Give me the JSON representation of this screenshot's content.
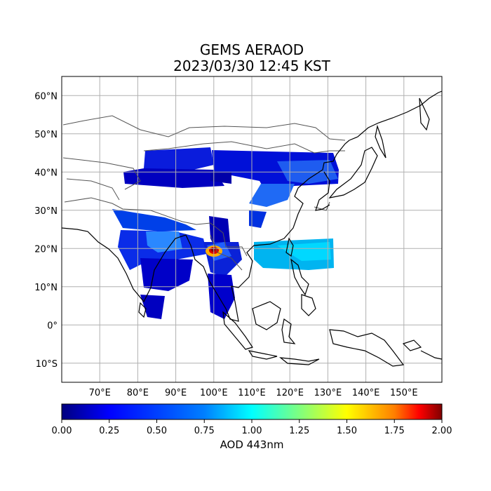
{
  "title": "GEMS AERAOD",
  "subtitle": "2023/03/30 12:45 KST",
  "map": {
    "lon_range": [
      60,
      160
    ],
    "lat_range": [
      -15,
      65
    ],
    "lon_ticks": [
      {
        "value": 70,
        "label": "70°E"
      },
      {
        "value": 80,
        "label": "80°E"
      },
      {
        "value": 90,
        "label": "90°E"
      },
      {
        "value": 100,
        "label": "100°E"
      },
      {
        "value": 110,
        "label": "110°E"
      },
      {
        "value": 120,
        "label": "120°E"
      },
      {
        "value": 130,
        "label": "130°E"
      },
      {
        "value": 140,
        "label": "140°E"
      },
      {
        "value": 150,
        "label": "150°E"
      }
    ],
    "lat_ticks": [
      {
        "value": 60,
        "label": "60°N"
      },
      {
        "value": 50,
        "label": "50°N"
      },
      {
        "value": 40,
        "label": "40°N"
      },
      {
        "value": 30,
        "label": "30°N"
      },
      {
        "value": 20,
        "label": "20°N"
      },
      {
        "value": 10,
        "label": "10°N"
      },
      {
        "value": 0,
        "label": "0°"
      },
      {
        "value": -10,
        "label": "10°S"
      }
    ]
  },
  "colorbar": {
    "label": "AOD 443nm",
    "min": 0.0,
    "max": 2.0,
    "ticks": [
      "0.00",
      "0.25",
      "0.50",
      "0.75",
      "1.00",
      "1.25",
      "1.50",
      "1.75",
      "2.00"
    ]
  },
  "colors": {
    "grid": "#b0b0b0",
    "coast": "#000000",
    "border": "#555555",
    "colormap": [
      "#00007f",
      "#0000ff",
      "#007fff",
      "#00ffff",
      "#7fff7f",
      "#ffff00",
      "#ff7f00",
      "#ff0000",
      "#7f0000"
    ]
  }
}
